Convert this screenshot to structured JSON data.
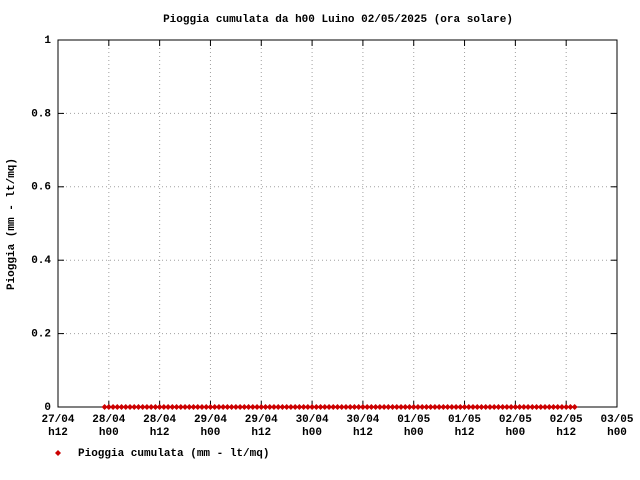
{
  "chart_data": {
    "type": "scatter",
    "title": "Pioggia cumulata da h00 Luino 02/05/2025 (ora solare)",
    "y_label": "Pioggia (mm - lt/mq)",
    "ylim": [
      0,
      1
    ],
    "yticks": [
      0,
      0.2,
      0.4,
      0.6,
      0.8,
      1
    ],
    "xlim": [
      "27/04\nh12",
      "03/05\nh00"
    ],
    "xticks": [
      "27/04\nh12",
      "28/04\nh00",
      "28/04\nh12",
      "29/04\nh00",
      "29/04\nh12",
      "30/04\nh00",
      "30/04\nh12",
      "01/05\nh00",
      "01/05\nh12",
      "02/05\nh00",
      "02/05\nh12",
      "03/05\nh00"
    ],
    "grid": true,
    "legend": "bottom-left",
    "series": [
      {
        "name": "Pioggia cumulata (mm - lt/mq)",
        "color": "#cc0000",
        "x": [
          "27/04 h23",
          "28/04 h00",
          "28/04 h01",
          "28/04 h02",
          "28/04 h03",
          "28/04 h04",
          "28/04 h05",
          "28/04 h06",
          "28/04 h07",
          "28/04 h08",
          "28/04 h09",
          "28/04 h10",
          "28/04 h11",
          "28/04 h12",
          "28/04 h13",
          "28/04 h14",
          "28/04 h15",
          "28/04 h16",
          "28/04 h17",
          "28/04 h18",
          "28/04 h19",
          "28/04 h20",
          "28/04 h21",
          "28/04 h22",
          "28/04 h23",
          "29/04 h00",
          "29/04 h01",
          "29/04 h02",
          "29/04 h03",
          "29/04 h04",
          "29/04 h05",
          "29/04 h06",
          "29/04 h07",
          "29/04 h08",
          "29/04 h09",
          "29/04 h10",
          "29/04 h11",
          "29/04 h12",
          "29/04 h13",
          "29/04 h14",
          "29/04 h15",
          "29/04 h16",
          "29/04 h17",
          "29/04 h18",
          "29/04 h19",
          "29/04 h20",
          "29/04 h21",
          "29/04 h22",
          "29/04 h23",
          "30/04 h00",
          "30/04 h01",
          "30/04 h02",
          "30/04 h03",
          "30/04 h04",
          "30/04 h05",
          "30/04 h06",
          "30/04 h07",
          "30/04 h08",
          "30/04 h09",
          "30/04 h10",
          "30/04 h11",
          "30/04 h12",
          "30/04 h13",
          "30/04 h14",
          "30/04 h15",
          "30/04 h16",
          "30/04 h17",
          "30/04 h18",
          "30/04 h19",
          "30/04 h20",
          "30/04 h21",
          "30/04 h22",
          "30/04 h23",
          "01/05 h00",
          "01/05 h01",
          "01/05 h02",
          "01/05 h03",
          "01/05 h04",
          "01/05 h05",
          "01/05 h06",
          "01/05 h07",
          "01/05 h08",
          "01/05 h09",
          "01/05 h10",
          "01/05 h11",
          "01/05 h12",
          "01/05 h13",
          "01/05 h14",
          "01/05 h15",
          "01/05 h16",
          "01/05 h17",
          "01/05 h18",
          "01/05 h19",
          "01/05 h20",
          "01/05 h21",
          "01/05 h22",
          "01/05 h23",
          "02/05 h00",
          "02/05 h01",
          "02/05 h02",
          "02/05 h03",
          "02/05 h04",
          "02/05 h05",
          "02/05 h06",
          "02/05 h07",
          "02/05 h08",
          "02/05 h09",
          "02/05 h10",
          "02/05 h11",
          "02/05 h12",
          "02/05 h13",
          "02/05 h14"
        ],
        "values": [
          0,
          0,
          0,
          0,
          0,
          0,
          0,
          0,
          0,
          0,
          0,
          0,
          0,
          0,
          0,
          0,
          0,
          0,
          0,
          0,
          0,
          0,
          0,
          0,
          0,
          0,
          0,
          0,
          0,
          0,
          0,
          0,
          0,
          0,
          0,
          0,
          0,
          0,
          0,
          0,
          0,
          0,
          0,
          0,
          0,
          0,
          0,
          0,
          0,
          0,
          0,
          0,
          0,
          0,
          0,
          0,
          0,
          0,
          0,
          0,
          0,
          0,
          0,
          0,
          0,
          0,
          0,
          0,
          0,
          0,
          0,
          0,
          0,
          0,
          0,
          0,
          0,
          0,
          0,
          0,
          0,
          0,
          0,
          0,
          0,
          0,
          0,
          0,
          0,
          0,
          0,
          0,
          0,
          0,
          0,
          0,
          0,
          0,
          0,
          0,
          0,
          0,
          0,
          0,
          0,
          0,
          0,
          0,
          0,
          0,
          0,
          0
        ]
      }
    ]
  }
}
